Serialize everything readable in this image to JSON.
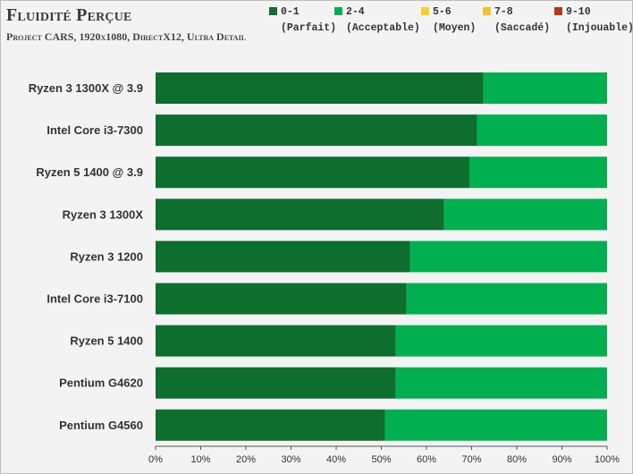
{
  "title": "Fluidité Perçue",
  "subtitle": "Project CARS, 1920x1080, DirectX12, Ultra Detail",
  "legend": [
    {
      "range": "0-1",
      "label": "(Parfait)",
      "color": "#0d6e2e"
    },
    {
      "range": "2-4",
      "label": "(Acceptable)",
      "color": "#00b050"
    },
    {
      "range": "5-6",
      "label": "(Moyen)",
      "color": "#f4d020"
    },
    {
      "range": "7-8",
      "label": "(Saccadé)",
      "color": "#f0c430"
    },
    {
      "range": "9-10",
      "label": "(Injouable)",
      "color": "#b23c0f"
    }
  ],
  "chart_data": {
    "type": "bar",
    "orientation": "horizontal",
    "stacked": true,
    "categories": [
      "Ryzen 3 1300X @ 3.9",
      "Intel Core i3-7300",
      "Ryzen 5 1400 @ 3.9",
      "Ryzen 3 1300X",
      "Ryzen 3 1200",
      "Intel Core i3-7100",
      "Ryzen 5 1400",
      "Pentium G4620",
      "Pentium G4560"
    ],
    "series": [
      {
        "name": "0-1 (Parfait)",
        "color": "#0d6e2e",
        "values": [
          72.6,
          71.2,
          69.5,
          63.9,
          56.4,
          55.6,
          53.2,
          53.2,
          50.8
        ]
      },
      {
        "name": "2-4 (Acceptable)",
        "color": "#00b050",
        "values": [
          27.4,
          28.8,
          30.5,
          36.1,
          43.6,
          44.4,
          46.8,
          46.8,
          49.2
        ]
      },
      {
        "name": "5-6 (Moyen)",
        "color": "#f4d020",
        "values": [
          0,
          0,
          0,
          0,
          0,
          0,
          0,
          0,
          0
        ]
      },
      {
        "name": "7-8 (Saccadé)",
        "color": "#f0c430",
        "values": [
          0,
          0,
          0,
          0,
          0,
          0,
          0,
          0,
          0
        ]
      },
      {
        "name": "9-10 (Injouable)",
        "color": "#b23c0f",
        "values": [
          0,
          0,
          0,
          0,
          0,
          0,
          0,
          0,
          0
        ]
      }
    ],
    "xlim": [
      0,
      100
    ],
    "xticks": [
      "0%",
      "10%",
      "20%",
      "30%",
      "40%",
      "50%",
      "60%",
      "70%",
      "80%",
      "90%",
      "100%"
    ],
    "grid": false,
    "legend_position": "top-right"
  }
}
